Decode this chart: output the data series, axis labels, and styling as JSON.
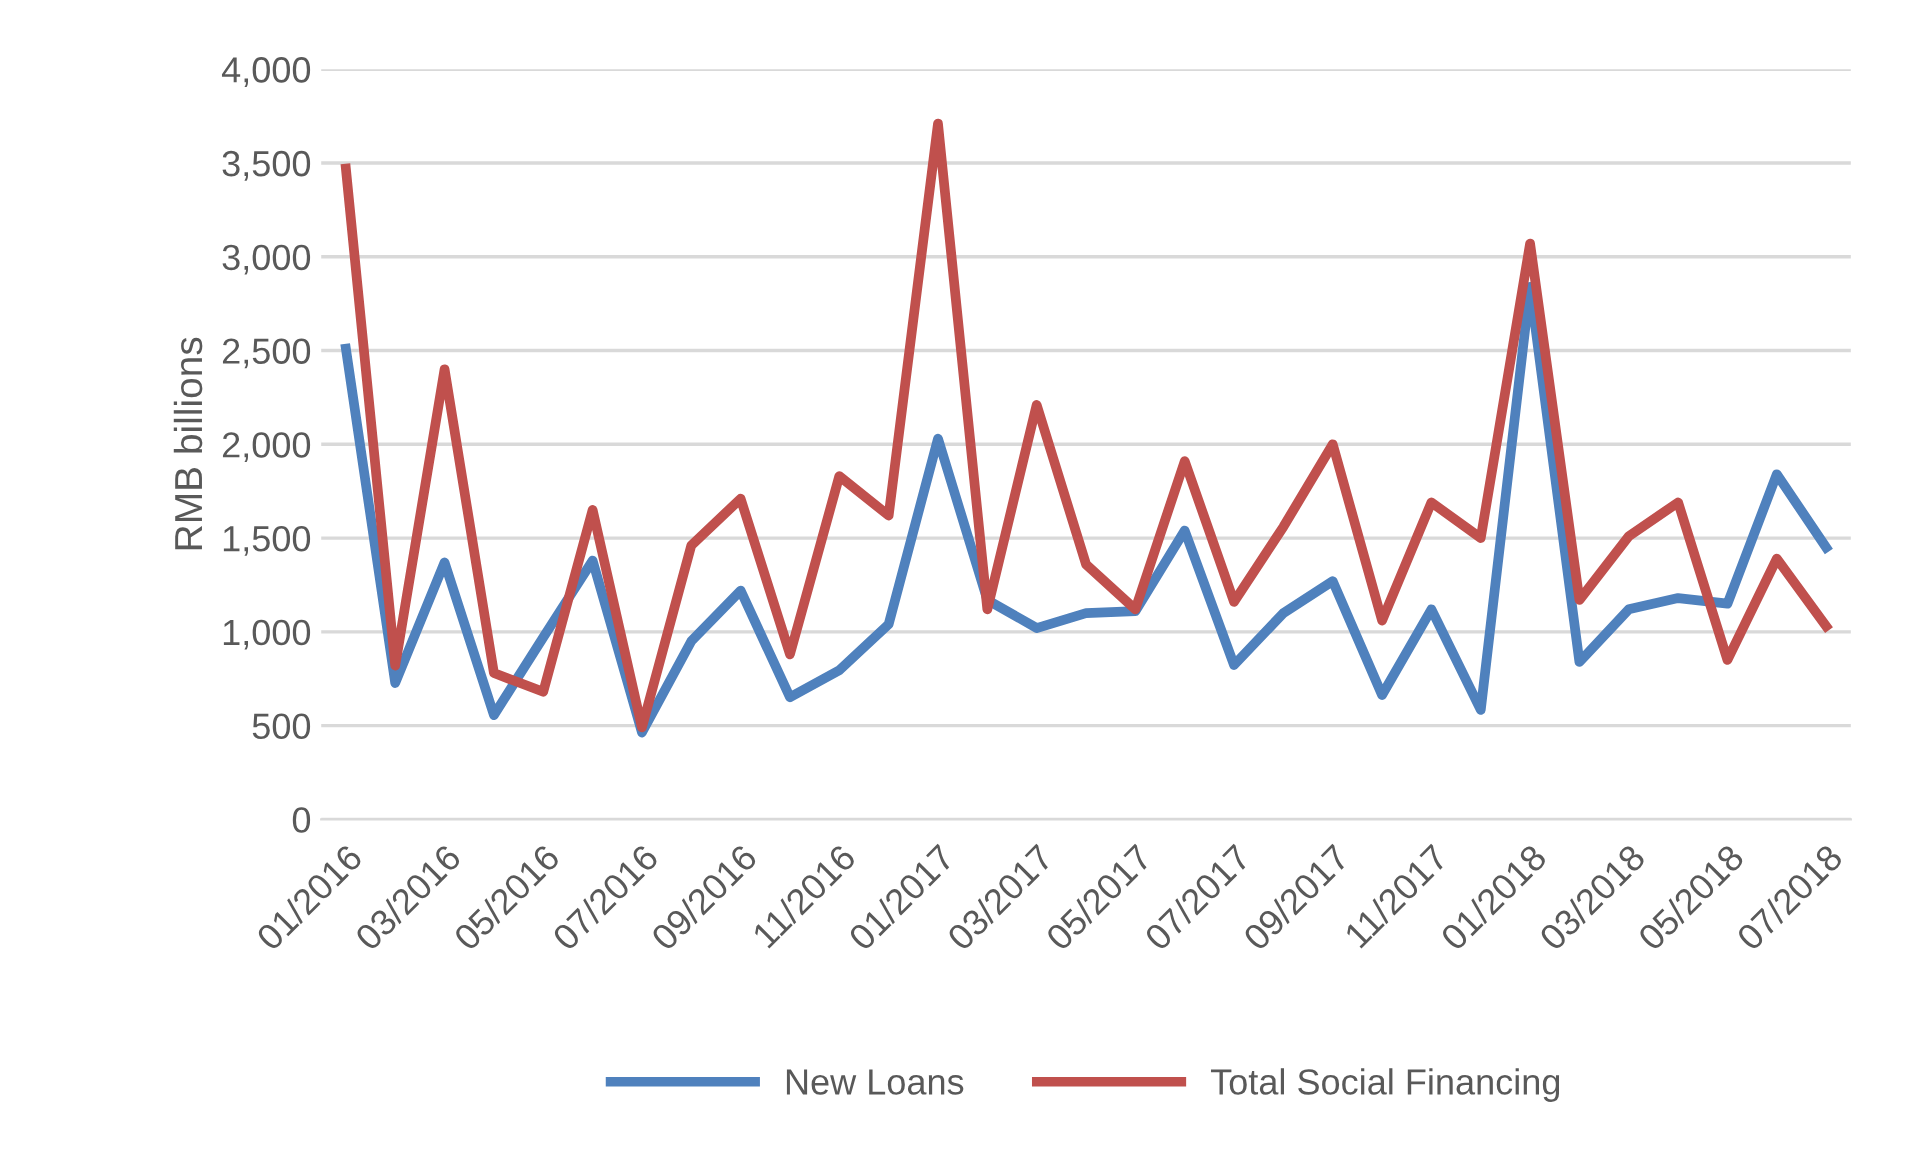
{
  "chart_data": {
    "type": "line",
    "ylabel": "RMB billions",
    "categories": [
      "01/2016",
      null,
      "03/2016",
      null,
      "05/2016",
      null,
      "07/2016",
      null,
      "09/2016",
      null,
      "11/2016",
      null,
      "01/2017",
      null,
      "03/2017",
      null,
      "05/2017",
      null,
      "07/2017",
      null,
      "09/2017",
      null,
      "11/2017",
      null,
      "01/2018",
      null,
      "03/2018",
      null,
      "05/2018",
      null,
      "07/2018"
    ],
    "series": [
      {
        "name": "New Loans",
        "color": "#4f81bd",
        "values": [
          2510,
          727,
          1370,
          556,
          970,
          1380,
          463,
          950,
          1220,
          651,
          795,
          1040,
          2030,
          1170,
          1020,
          1100,
          1110,
          1540,
          823,
          1100,
          1270,
          663,
          1120,
          584,
          2840,
          839,
          1120,
          1180,
          1150,
          1840,
          1450
        ]
      },
      {
        "name": "Total Social Financing",
        "color": "#c0504d",
        "values": [
          3470,
          820,
          2400,
          780,
          680,
          1650,
          490,
          1460,
          1710,
          880,
          1830,
          1620,
          3710,
          1120,
          2210,
          1360,
          1120,
          1910,
          1160,
          1560,
          2000,
          1060,
          1690,
          1500,
          3070,
          1170,
          1510,
          1690,
          850,
          1390,
          1030
        ]
      }
    ],
    "ylim": [
      0,
      4000
    ],
    "yticks": [
      0,
      {
        "value": 500,
        "label": "500"
      },
      {
        "value": 1000,
        "label": "1,000"
      },
      {
        "value": 1500,
        "label": "1,500"
      },
      {
        "value": 2000,
        "label": "2,000"
      },
      {
        "value": 2500,
        "label": "2,500"
      },
      {
        "value": 3000,
        "label": "3,000"
      },
      {
        "value": 3500,
        "label": "3,500"
      },
      {
        "value": 4000,
        "label": "4,000"
      }
    ],
    "grid": "y",
    "legend": "bottom",
    "marker": "none",
    "line_style": "solid"
  }
}
